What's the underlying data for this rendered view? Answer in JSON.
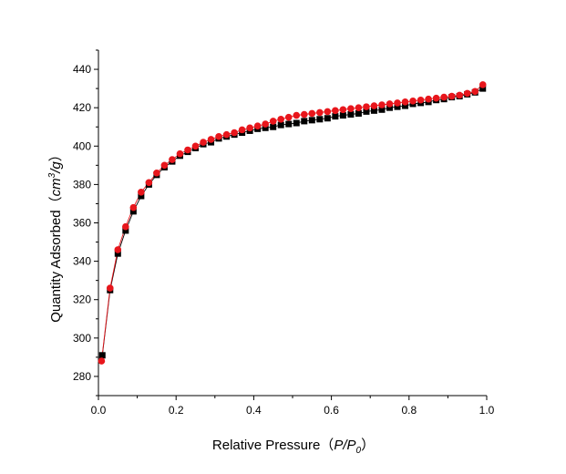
{
  "chart_data": {
    "type": "scatter",
    "xlabel": "Relative Pressure",
    "xlabel_formula": {
      "open": "（",
      "p": "P/P",
      "sub": "0",
      "close": "）"
    },
    "ylabel": "Quantity Adsorbed",
    "ylabel_unit": {
      "open": "（",
      "base": "cm",
      "sup": "3",
      "tail": "/g",
      "close": "）"
    },
    "xlim": [
      0.0,
      1.0
    ],
    "ylim": [
      270,
      450
    ],
    "xticks": [
      "0.0",
      "0.2",
      "0.4",
      "0.6",
      "0.8",
      "1.0"
    ],
    "xtick_values": [
      0.0,
      0.2,
      0.4,
      0.6,
      0.8,
      1.0
    ],
    "yticks": [
      "280",
      "300",
      "320",
      "340",
      "360",
      "380",
      "400",
      "420",
      "440"
    ],
    "ytick_values": [
      280,
      300,
      320,
      340,
      360,
      380,
      400,
      420,
      440
    ],
    "grid": false,
    "legend": "none",
    "series": [
      {
        "marker": "square",
        "color": "#000000",
        "x": [
          0.01,
          0.03,
          0.05,
          0.07,
          0.09,
          0.11,
          0.13,
          0.15,
          0.17,
          0.19,
          0.21,
          0.23,
          0.25,
          0.27,
          0.29,
          0.31,
          0.33,
          0.35,
          0.37,
          0.39,
          0.41,
          0.43,
          0.45,
          0.47,
          0.49,
          0.51,
          0.53,
          0.55,
          0.57,
          0.59,
          0.61,
          0.63,
          0.65,
          0.67,
          0.69,
          0.71,
          0.73,
          0.75,
          0.77,
          0.79,
          0.81,
          0.83,
          0.85,
          0.87,
          0.89,
          0.91,
          0.93,
          0.95,
          0.97,
          0.99
        ],
        "y": [
          291,
          325,
          344,
          356,
          366,
          374,
          380,
          385,
          389,
          392,
          395,
          397,
          399,
          401,
          402,
          404,
          405,
          406,
          407,
          408,
          409,
          409.5,
          410,
          411,
          411.5,
          412,
          413,
          413.5,
          414,
          414.5,
          415.5,
          416,
          416.5,
          417,
          418,
          418.5,
          419,
          420,
          420.5,
          421,
          422,
          422.5,
          423,
          424,
          424.5,
          425.5,
          426,
          427,
          428,
          430
        ]
      },
      {
        "marker": "circle",
        "color": "#e8161c",
        "x": [
          0.008,
          0.03,
          0.05,
          0.07,
          0.09,
          0.11,
          0.13,
          0.15,
          0.17,
          0.19,
          0.21,
          0.23,
          0.25,
          0.27,
          0.29,
          0.31,
          0.33,
          0.35,
          0.37,
          0.39,
          0.41,
          0.43,
          0.45,
          0.47,
          0.49,
          0.51,
          0.53,
          0.55,
          0.57,
          0.59,
          0.61,
          0.63,
          0.65,
          0.67,
          0.69,
          0.71,
          0.73,
          0.75,
          0.77,
          0.79,
          0.81,
          0.83,
          0.85,
          0.87,
          0.89,
          0.91,
          0.93,
          0.95,
          0.97,
          0.99
        ],
        "y": [
          288,
          326,
          346,
          358,
          368,
          376,
          381,
          386,
          390,
          393,
          396,
          398,
          400,
          402,
          403.5,
          405,
          406,
          407,
          408.5,
          409.5,
          410.5,
          411.5,
          413,
          414,
          415,
          416,
          416.5,
          417,
          417.5,
          418,
          418.5,
          419,
          419.5,
          420,
          420.5,
          421,
          421.5,
          422,
          422.5,
          423,
          423.5,
          424,
          424.5,
          425,
          425.5,
          426,
          426.5,
          427.5,
          428.5,
          432
        ]
      }
    ]
  }
}
